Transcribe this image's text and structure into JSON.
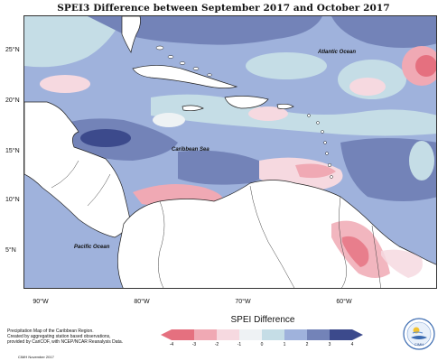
{
  "title": "SPEI3 Difference between September 2017 and October 2017",
  "map": {
    "lat_labels": [
      "25°N",
      "20°N",
      "15°N",
      "10°N",
      "5°N"
    ],
    "lon_labels": [
      "90°W",
      "80°W",
      "70°W",
      "60°W"
    ],
    "sea_labels": {
      "atlantic": "Atlantic Ocean",
      "caribbean": "Caribbean Sea",
      "pacific": "Pacific Ocean"
    },
    "colors": {
      "land": "#ffffff",
      "coast": "#222222",
      "very_wet": "#3c4a8c",
      "wet": "#7383b8",
      "moderately_wet": "#9fb2dc",
      "slightly_wet": "#c5dde6",
      "neutral": "#eef2f4",
      "slightly_dry": "#f6d9e0",
      "dry": "#f0a9b4",
      "very_dry": "#e5707f"
    }
  },
  "legend": {
    "title": "SPEI Difference",
    "ticks": [
      "-4",
      "-3",
      "-2",
      "-1",
      "0",
      "1",
      "2",
      "3",
      "4"
    ],
    "colors": [
      "#e5707f",
      "#f0a9b4",
      "#f6d9e0",
      "#eef2f4",
      "#c5dde6",
      "#9fb2dc",
      "#7383b8",
      "#3c4a8c"
    ]
  },
  "credits": {
    "line1": "Precipitation Map of the Caribbean Region.",
    "line2": "Created by aggregating station based observations,",
    "line3": "provided by CariCOF, with NCEP/NCAR Reanalysis Data.",
    "date": "CIMH November 2017"
  },
  "logo": {
    "text": "CIMH"
  }
}
